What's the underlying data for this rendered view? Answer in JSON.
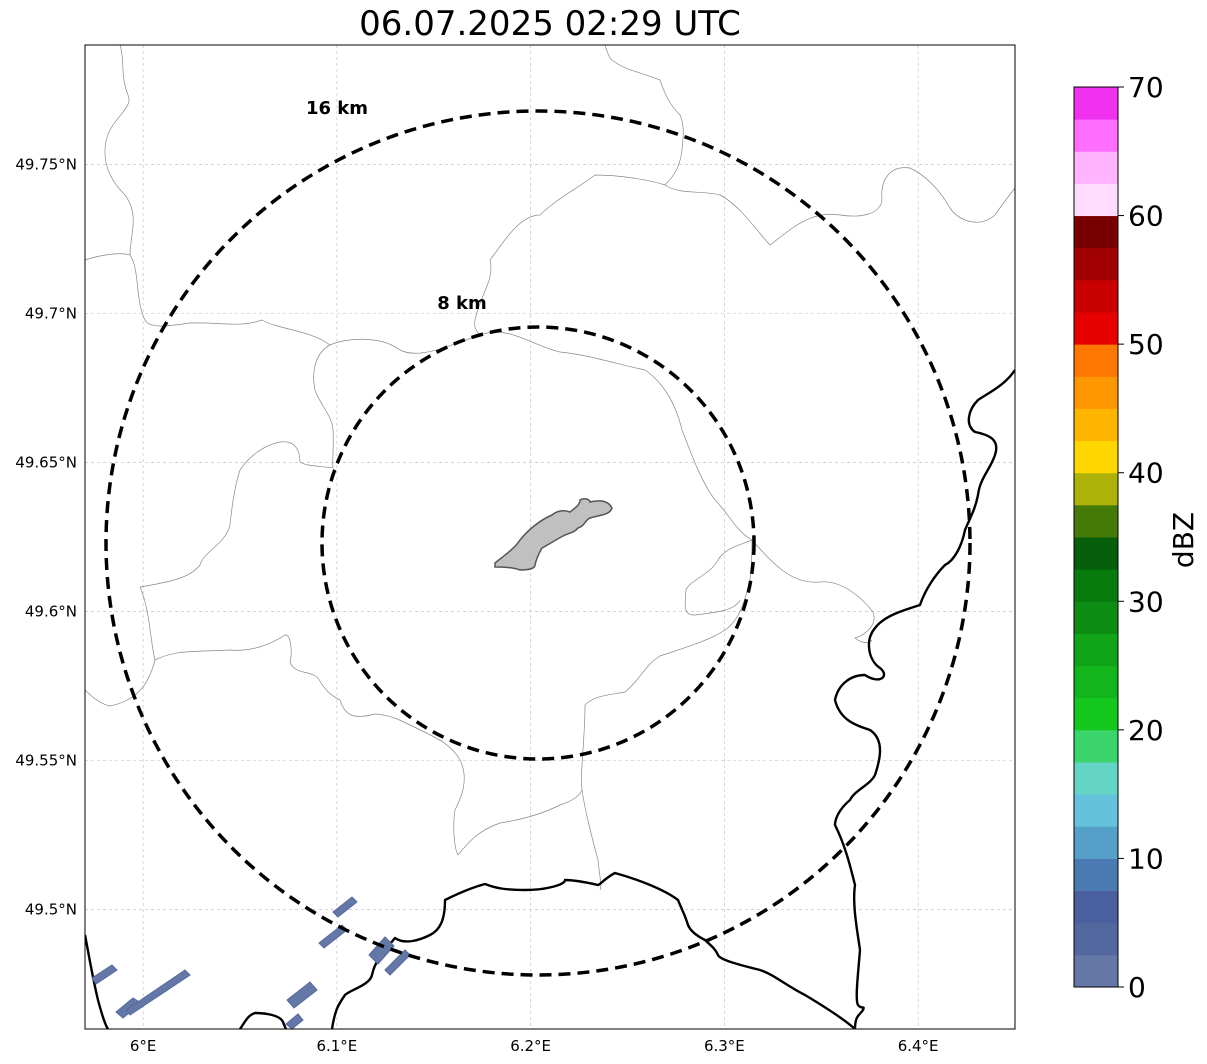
{
  "title": "06.07.2025 02:29 UTC",
  "map": {
    "lon_range": [
      5.97,
      6.45
    ],
    "lat_range": [
      49.46,
      49.79
    ],
    "lon_ticks": [
      {
        "value": 6.0,
        "label": "6°E"
      },
      {
        "value": 6.1,
        "label": "6.1°E"
      },
      {
        "value": 6.2,
        "label": "6.2°E"
      },
      {
        "value": 6.3,
        "label": "6.3°E"
      },
      {
        "value": 6.4,
        "label": "6.4°E"
      }
    ],
    "lat_ticks": [
      {
        "value": 49.5,
        "label": "49.5°N"
      },
      {
        "value": 49.55,
        "label": "49.55°N"
      },
      {
        "value": 49.6,
        "label": "49.6°N"
      },
      {
        "value": 49.65,
        "label": "49.65°N"
      },
      {
        "value": 49.7,
        "label": "49.7°N"
      },
      {
        "value": 49.75,
        "label": "49.75°N"
      }
    ],
    "gridlines": true,
    "range_rings": [
      {
        "radius_km": 8,
        "label": "8 km"
      },
      {
        "radius_km": 16,
        "label": "16 km"
      }
    ],
    "city": "shaded urban area near ring center"
  },
  "colorbar": {
    "label": "dBZ",
    "min": 0,
    "max": 70,
    "tick_labels": [
      "0",
      "10",
      "20",
      "30",
      "40",
      "50",
      "60",
      "70"
    ],
    "colors": [
      "#6478a8",
      "#5468a0",
      "#4a5f9e",
      "#4b7ab2",
      "#55a0c8",
      "#64c2dc",
      "#64d4c6",
      "#3cd46c",
      "#14c81e",
      "#12b61c",
      "#10a418",
      "#0c8c12",
      "#087a0e",
      "#045e0a",
      "#467a08",
      "#acb208",
      "#ffd700",
      "#ffb400",
      "#ff9800",
      "#ff7800",
      "#e60000",
      "#c80000",
      "#a00000",
      "#780000",
      "#ffdcff",
      "#ffb4ff",
      "#ff6eff",
      "#f032f0"
    ]
  }
}
